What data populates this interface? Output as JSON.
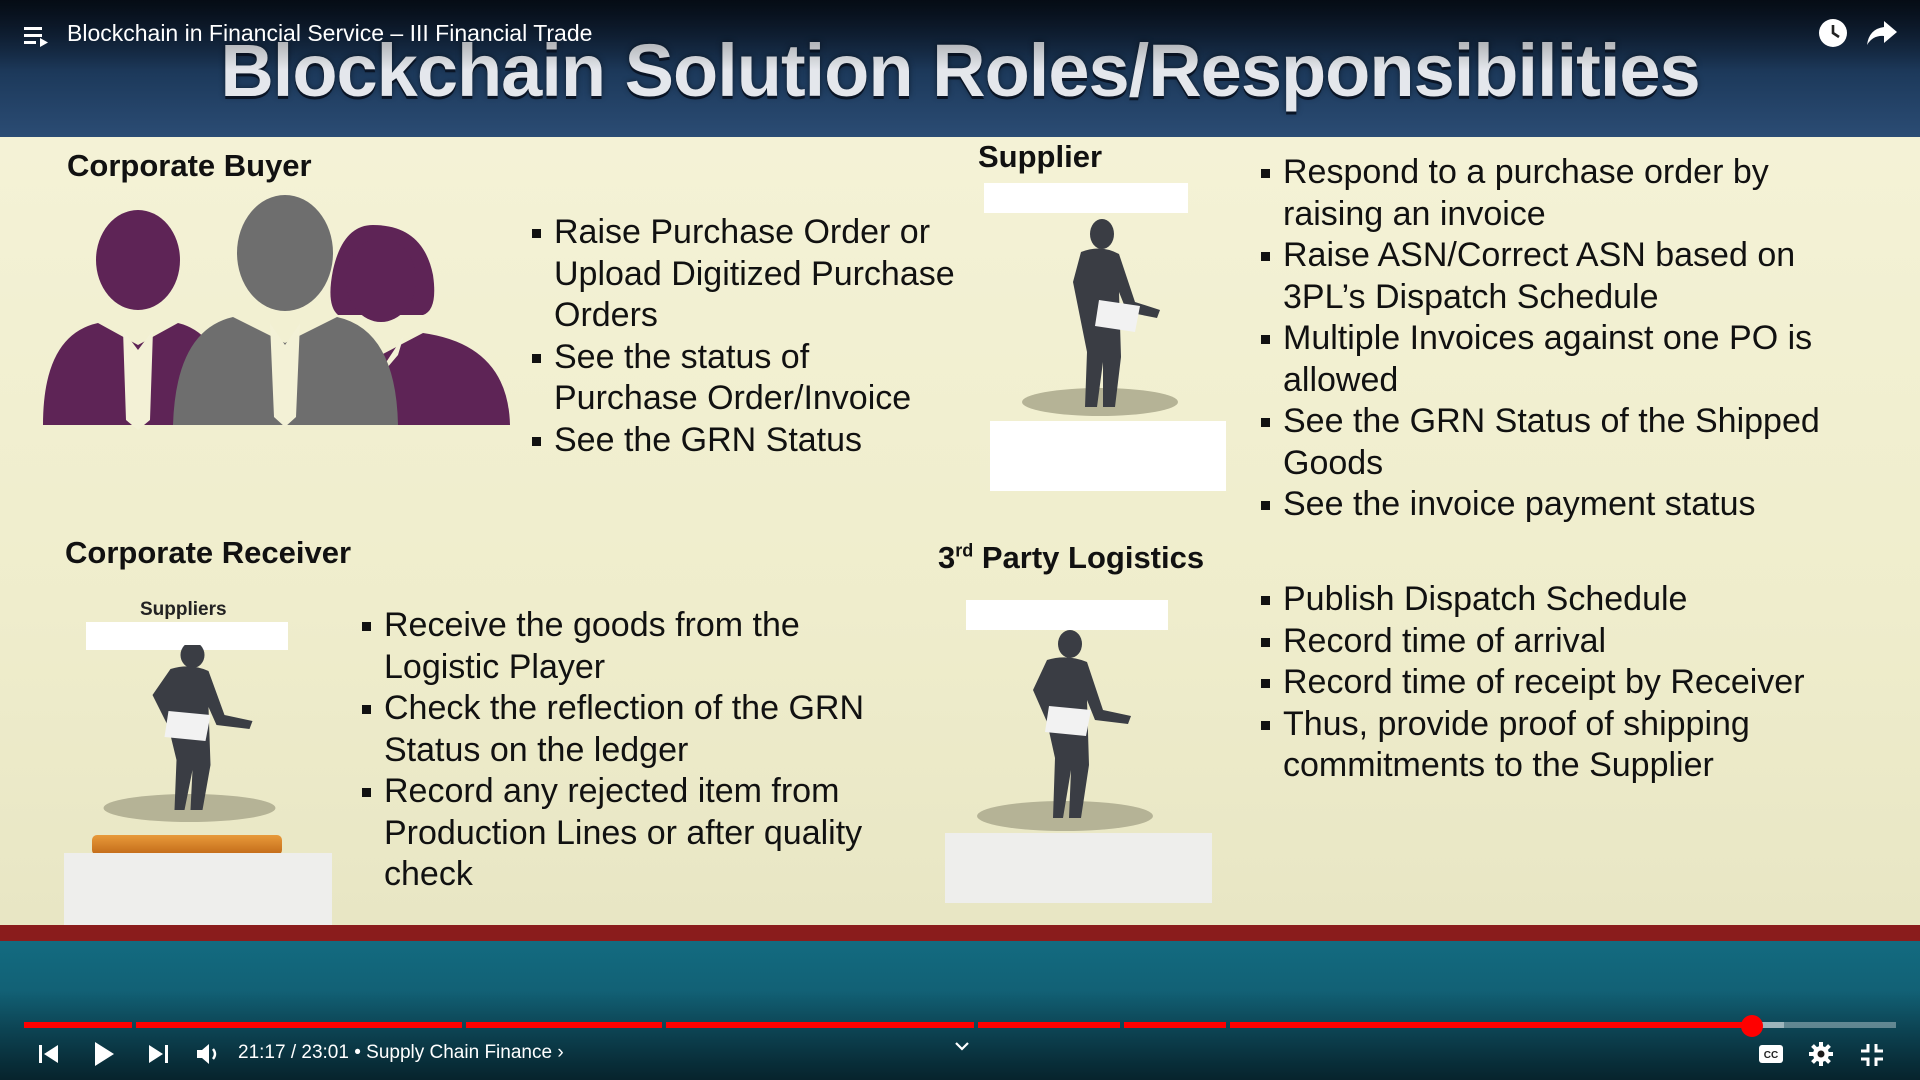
{
  "video": {
    "title": "Blockchain in Financial Service – III Financial Trade"
  },
  "slide": {
    "title": "Blockchain Solution Roles/Responsibilities",
    "corporate_buyer": {
      "heading": "Corporate Buyer",
      "bullets": [
        "Raise Purchase Order or Upload Digitized Purchase Orders",
        "See the status of Purchase Order/Invoice",
        "See the GRN Status"
      ]
    },
    "supplier": {
      "heading": "Supplier",
      "bullets": [
        "Respond to a purchase order by raising an invoice",
        "Raise ASN/Correct ASN based on 3PL’s Dispatch Schedule",
        "Multiple Invoices against one PO is allowed",
        "See the GRN Status of the Shipped Goods",
        "See the invoice payment status"
      ]
    },
    "corporate_receiver": {
      "heading": "Corporate Receiver",
      "figure_label": "Suppliers",
      "bullets": [
        "Receive the goods from the Logistic Player",
        "Check the reflection of the GRN Status on the ledger",
        "Record any rejected item from Production Lines or after quality check"
      ]
    },
    "logistics": {
      "heading_num": "3",
      "heading_sup": "rd",
      "heading_rest": " Party Logistics",
      "bullets": [
        "Publish Dispatch Schedule",
        "Record time of arrival",
        "Record time of receipt by Receiver",
        "Thus, provide proof of shipping commitments to the Supplier"
      ]
    }
  },
  "controls": {
    "time": "21:17 / 23:01",
    "chapter": " • Supply Chain Finance ›",
    "progress_fraction": 0.925,
    "icons": [
      "menu-icon",
      "clock-icon",
      "share-icon",
      "previous-icon",
      "play-icon",
      "next-icon",
      "volume-icon",
      "captions-icon",
      "settings-icon",
      "exit-fullscreen-icon"
    ]
  },
  "colors": {
    "progress_played": "#ff0000",
    "purple": "#5e2456",
    "gray": "#6e6e6e"
  }
}
